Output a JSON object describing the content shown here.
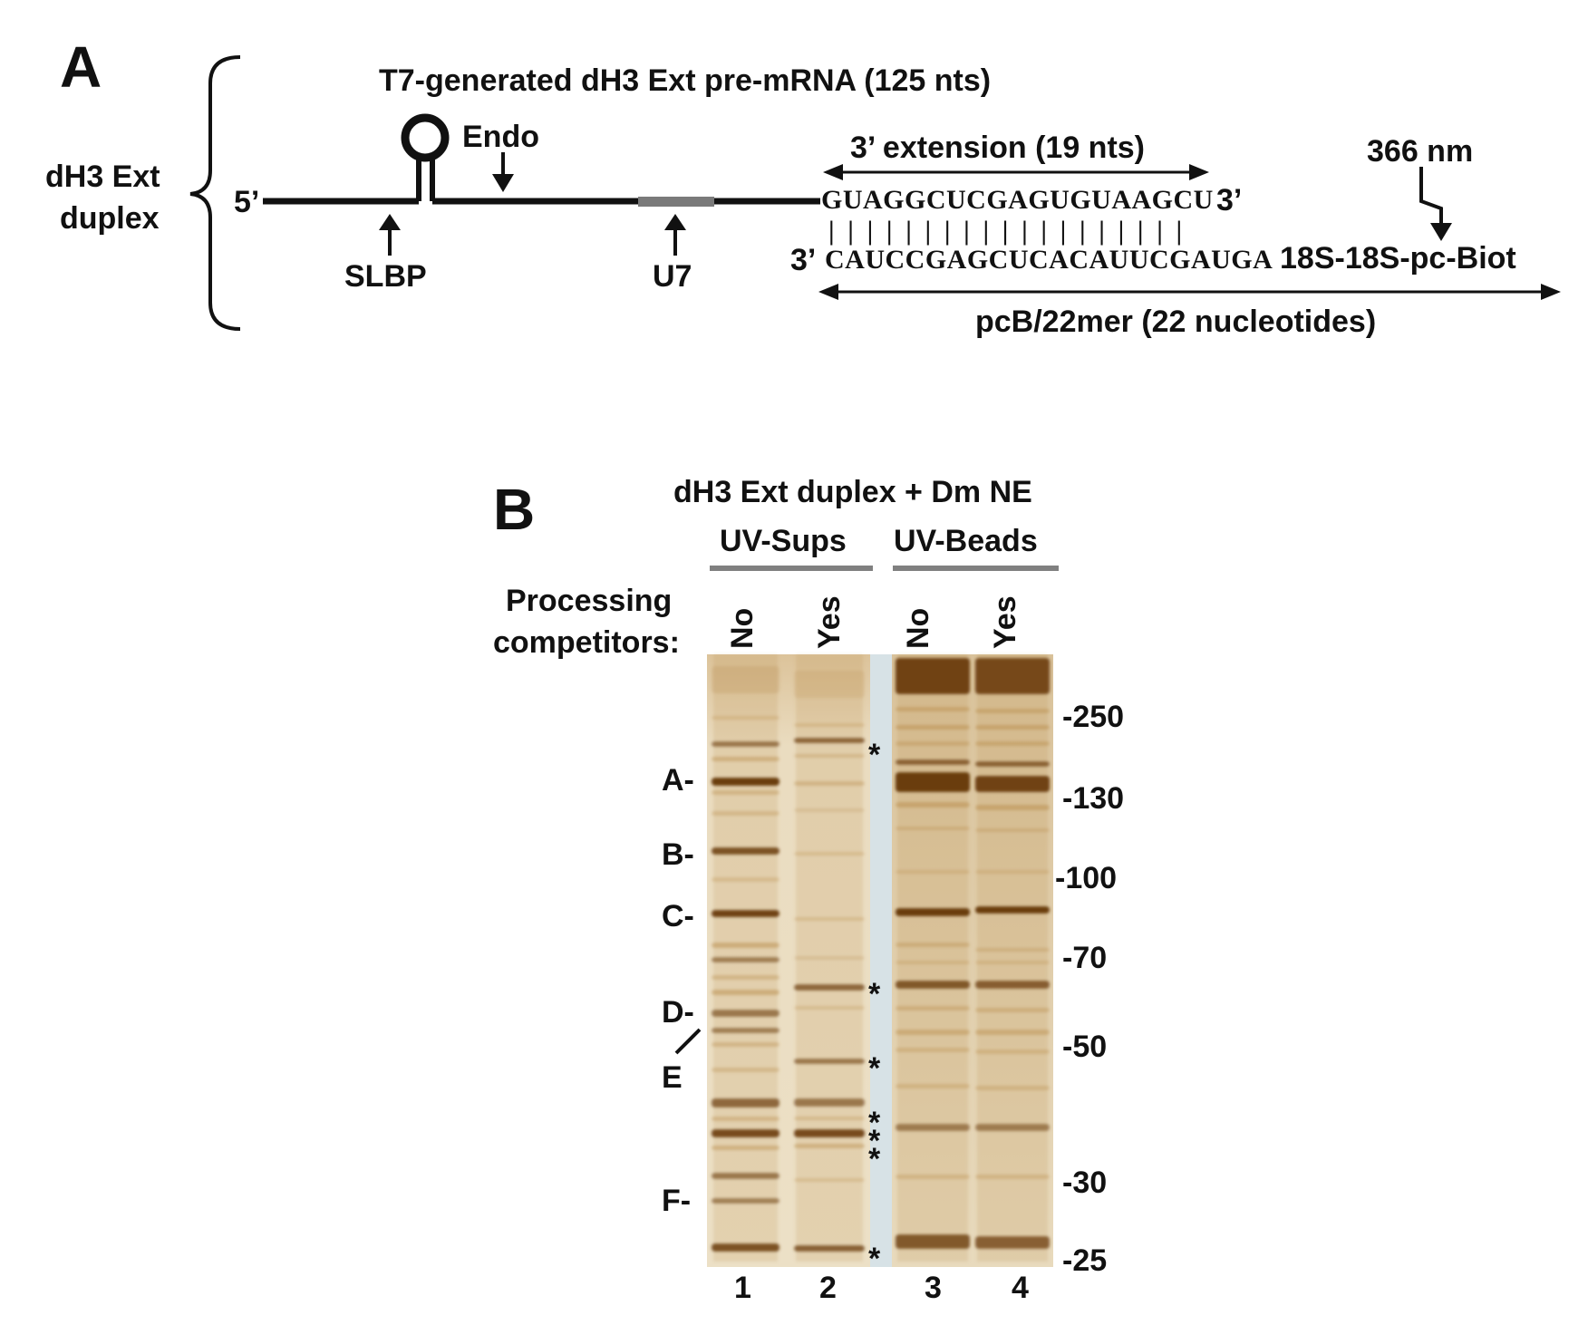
{
  "panel_a": {
    "letter": "A",
    "title": "T7-generated dH3 Ext pre-mRNA (125 nts)",
    "duplex_label_line1": "dH3 Ext",
    "duplex_label_line2": "duplex",
    "five_prime": "5’",
    "endo": "Endo",
    "slbp": "SLBP",
    "u7": "U7",
    "extension_label": "3’ extension (19 nts)",
    "top_sequence": "GUAGGCUCGAGUGUAAGCU",
    "top_three_prime": "3’",
    "pairing": "| | | | | | | | | | | | | | | | | | |",
    "bottom_three_prime": "3’",
    "bottom_sequence": "CAUCCGAGCUCACAUUCGAUGA",
    "probe_label": "18S-18S-pc-Biot",
    "uv_label": "366 nm",
    "probe_length_label": "pcB/22mer (22 nucleotides)"
  },
  "panel_b": {
    "letter": "B",
    "title": "dH3 Ext duplex + Dm NE",
    "group_sups": "UV-Sups",
    "group_beads": "UV-Beads",
    "row_label_line1": "Processing",
    "row_label_line2": "competitors:",
    "lane_conditions": [
      "No",
      "Yes",
      "No",
      "Yes"
    ],
    "lane_numbers": [
      "1",
      "2",
      "3",
      "4"
    ],
    "band_labels": [
      "A-",
      "B-",
      "C-",
      "D-",
      "E",
      "F-"
    ],
    "marker_labels": [
      "-250",
      "-130",
      "-100",
      "-70",
      "-50",
      "-30",
      "-25"
    ],
    "asterisk": "*",
    "colors": {
      "gel_background": "#e9dcc1",
      "band_dark": "#6b3c10",
      "band_light": "#b98b4a",
      "gap": "#d7e2e6",
      "group_line": "#808080"
    }
  }
}
